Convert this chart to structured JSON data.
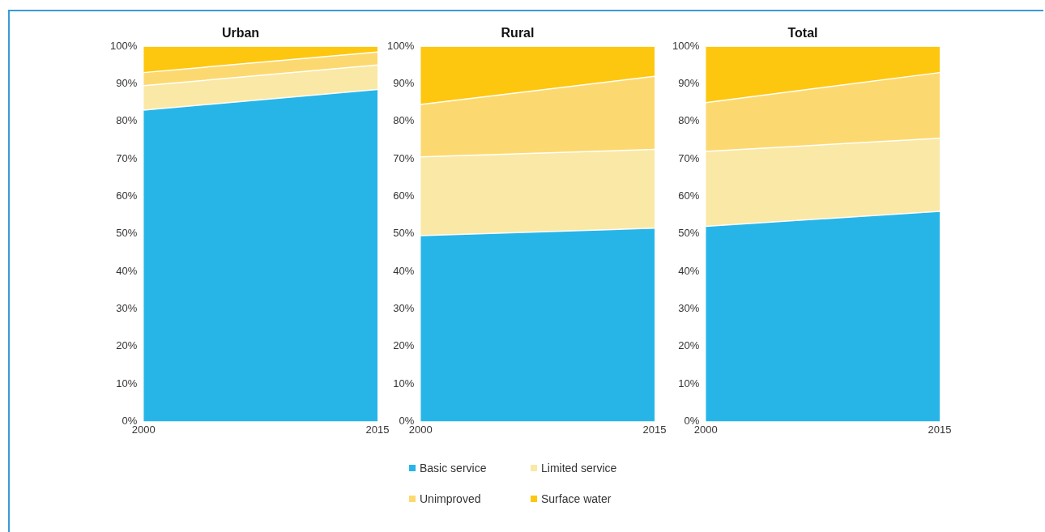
{
  "chart_data": [
    {
      "type": "area",
      "title": "Urban",
      "categories": [
        "2000",
        "2015"
      ],
      "stacked": true,
      "ylim": [
        0,
        100
      ],
      "yticks": [
        {
          "value": 0,
          "label": "0%"
        },
        {
          "value": 10,
          "label": "10%"
        },
        {
          "value": 20,
          "label": "20%"
        },
        {
          "value": 30,
          "label": "30%"
        },
        {
          "value": 40,
          "label": "40%"
        },
        {
          "value": 50,
          "label": "50%"
        },
        {
          "value": 60,
          "label": "60%"
        },
        {
          "value": 70,
          "label": "70%"
        },
        {
          "value": 80,
          "label": "80%"
        },
        {
          "value": 90,
          "label": "90%"
        },
        {
          "value": 100,
          "label": "100%"
        }
      ],
      "grid": false,
      "series": [
        {
          "color": "#27b5e8",
          "values": [
            83,
            88.5
          ]
        },
        {
          "color": "#fae8a6",
          "values": [
            6.5,
            6.5
          ]
        },
        {
          "color": "#fcd970",
          "values": [
            3.5,
            3.5
          ]
        },
        {
          "color": "#fdc70f",
          "values": [
            7,
            1.5
          ]
        }
      ]
    },
    {
      "type": "area",
      "title": "Rural",
      "categories": [
        "2000",
        "2015"
      ],
      "stacked": true,
      "ylim": [
        0,
        100
      ],
      "yticks": [
        {
          "value": 0,
          "label": "0%"
        },
        {
          "value": 10,
          "label": "10%"
        },
        {
          "value": 20,
          "label": "20%"
        },
        {
          "value": 30,
          "label": "30%"
        },
        {
          "value": 40,
          "label": "40%"
        },
        {
          "value": 50,
          "label": "50%"
        },
        {
          "value": 60,
          "label": "60%"
        },
        {
          "value": 70,
          "label": "70%"
        },
        {
          "value": 80,
          "label": "80%"
        },
        {
          "value": 90,
          "label": "90%"
        },
        {
          "value": 100,
          "label": "100%"
        }
      ],
      "grid": false,
      "legend": "bottom",
      "series": [
        {
          "name": "Basic service",
          "color": "#27b5e8",
          "values": [
            49.5,
            51.5
          ]
        },
        {
          "name": "Limited service",
          "color": "#fae8a6",
          "values": [
            21,
            21
          ]
        },
        {
          "name": "Unimproved",
          "color": "#fcd970",
          "values": [
            14,
            19.5
          ]
        },
        {
          "name": "Surface water",
          "color": "#fdc70f",
          "values": [
            15.5,
            8
          ]
        }
      ]
    },
    {
      "type": "area",
      "title": "Total",
      "categories": [
        "2000",
        "2015"
      ],
      "stacked": true,
      "ylim": [
        0,
        100
      ],
      "yticks": [
        {
          "value": 0,
          "label": "0%"
        },
        {
          "value": 10,
          "label": "10%"
        },
        {
          "value": 20,
          "label": "20%"
        },
        {
          "value": 30,
          "label": "30%"
        },
        {
          "value": 40,
          "label": "40%"
        },
        {
          "value": 50,
          "label": "50%"
        },
        {
          "value": 60,
          "label": "60%"
        },
        {
          "value": 70,
          "label": "70%"
        },
        {
          "value": 80,
          "label": "80%"
        },
        {
          "value": 90,
          "label": "90%"
        },
        {
          "value": 100,
          "label": "100%"
        }
      ],
      "grid": false,
      "series": [
        {
          "color": "#27b5e8",
          "values": [
            52,
            56
          ]
        },
        {
          "color": "#fae8a6",
          "values": [
            20,
            19.5
          ]
        },
        {
          "color": "#fcd970",
          "values": [
            13,
            17.5
          ]
        },
        {
          "color": "#fdc70f",
          "values": [
            15,
            7
          ]
        }
      ]
    }
  ]
}
